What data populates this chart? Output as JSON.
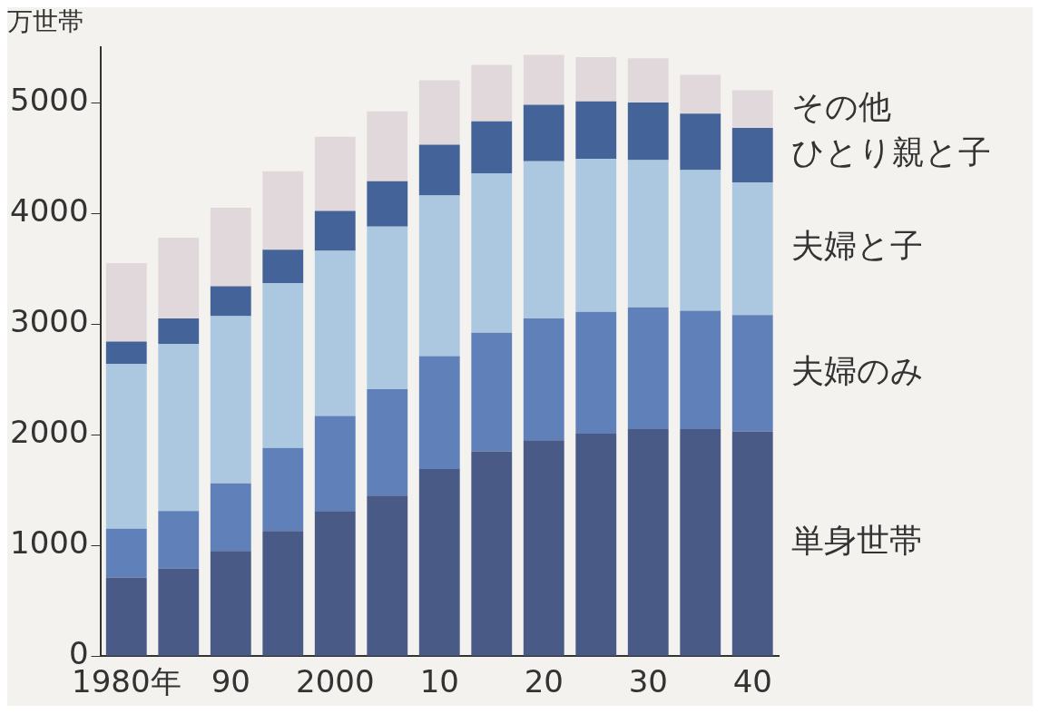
{
  "chart_data": {
    "type": "bar",
    "stacked": true,
    "ylabel": "万世帯",
    "categories": [
      "1980年",
      null,
      "90",
      null,
      "2000",
      null,
      "10",
      null,
      "20",
      null,
      "30",
      null,
      "40"
    ],
    "series": [
      {
        "name": "単身世帯",
        "color": "#4a5a86",
        "values": [
          710,
          790,
          950,
          1130,
          1310,
          1450,
          1690,
          1850,
          1950,
          2010,
          2050,
          2050,
          2030
        ]
      },
      {
        "name": "夫婦のみ",
        "color": "#6080ba",
        "values": [
          440,
          520,
          610,
          750,
          860,
          960,
          1020,
          1070,
          1100,
          1100,
          1100,
          1070,
          1050
        ]
      },
      {
        "name": "夫婦と子",
        "color": "#abc8e0",
        "values": [
          1490,
          1510,
          1510,
          1490,
          1490,
          1470,
          1450,
          1440,
          1420,
          1380,
          1330,
          1270,
          1200
        ]
      },
      {
        "name": "ひとり親と子",
        "color": "#446499",
        "values": [
          200,
          230,
          270,
          300,
          360,
          410,
          460,
          470,
          510,
          520,
          520,
          510,
          490
        ]
      },
      {
        "name": "その他",
        "color": "#e0d8da",
        "values": [
          710,
          730,
          710,
          710,
          670,
          630,
          580,
          510,
          450,
          400,
          400,
          350,
          340
        ]
      }
    ],
    "ylim": [
      0,
      5500
    ],
    "yticks": [
      0,
      1000,
      2000,
      3000,
      4000,
      5000
    ],
    "grid": false,
    "legend": false
  }
}
